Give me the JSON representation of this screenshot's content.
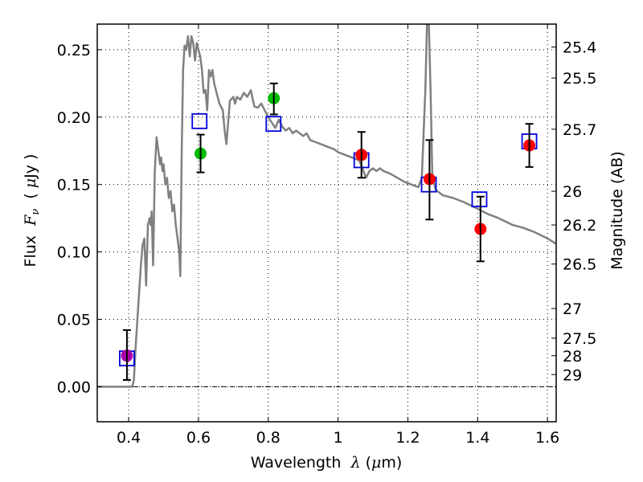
{
  "chart_data": {
    "type": "scatter",
    "title": "",
    "xlabel": "Wavelength  λ (μm)",
    "xlabel_parts": {
      "prefix": "Wavelength  ",
      "symbol": "λ",
      "suffix": " (",
      "mu": "μ",
      "unit": "m)"
    },
    "ylabel": "Flux  F_ν  ( μJy )",
    "ylabel_parts": {
      "prefix": "Flux  ",
      "symbol": "F",
      "sub": "ν",
      "open": "  ( ",
      "mu": "μ",
      "unit": "Jy )"
    },
    "y2label": "Magnitude (AB)",
    "xlim": [
      0.31,
      1.625
    ],
    "ylim": [
      -0.026,
      0.269
    ],
    "grid": true,
    "legend": "none",
    "xticks": [
      {
        "value": 0.4,
        "label": "0.4"
      },
      {
        "value": 0.6,
        "label": "0.6"
      },
      {
        "value": 0.8,
        "label": "0.8"
      },
      {
        "value": 1.0,
        "label": "1"
      },
      {
        "value": 1.2,
        "label": "1.2"
      },
      {
        "value": 1.4,
        "label": "1.4"
      },
      {
        "value": 1.6,
        "label": "1.6"
      }
    ],
    "yticks": [
      {
        "value": 0.0,
        "label": "0.00"
      },
      {
        "value": 0.05,
        "label": "0.05"
      },
      {
        "value": 0.1,
        "label": "0.10"
      },
      {
        "value": 0.15,
        "label": "0.15"
      },
      {
        "value": 0.2,
        "label": "0.20"
      },
      {
        "value": 0.25,
        "label": "0.25"
      }
    ],
    "y2ticks": [
      {
        "label": "25.4",
        "flux": 0.252
      },
      {
        "label": "25.5",
        "flux": 0.229
      },
      {
        "label": "25.7",
        "flux": 0.191
      },
      {
        "label": "26",
        "flux": 0.145
      },
      {
        "label": "26.2",
        "flux": 0.12
      },
      {
        "label": "26.5",
        "flux": 0.091
      },
      {
        "label": "27",
        "flux": 0.058
      },
      {
        "label": "27.5",
        "flux": 0.036
      },
      {
        "label": "28",
        "flux": 0.023
      },
      {
        "label": "29",
        "flux": 0.009
      }
    ],
    "zero_line": 0.0,
    "colors": {
      "spectrum": "#808080",
      "model_box": "#0000dd",
      "green": "#00bb00",
      "red": "#ff0000",
      "magenta": "#aa00aa",
      "errorbar": "#000000",
      "grid": "#000000"
    },
    "series": [
      {
        "name": "model spectrum",
        "kind": "line",
        "x": [
          0.31,
          0.41,
          0.415,
          0.42,
          0.43,
          0.435,
          0.44,
          0.445,
          0.45,
          0.455,
          0.46,
          0.463,
          0.466,
          0.47,
          0.475,
          0.48,
          0.485,
          0.49,
          0.493,
          0.497,
          0.5,
          0.505,
          0.51,
          0.515,
          0.52,
          0.525,
          0.53,
          0.535,
          0.54,
          0.545,
          0.548,
          0.552,
          0.556,
          0.56,
          0.565,
          0.57,
          0.575,
          0.58,
          0.585,
          0.59,
          0.595,
          0.6,
          0.605,
          0.61,
          0.615,
          0.62,
          0.625,
          0.63,
          0.635,
          0.64,
          0.645,
          0.65,
          0.66,
          0.67,
          0.675,
          0.68,
          0.69,
          0.7,
          0.705,
          0.71,
          0.72,
          0.73,
          0.74,
          0.75,
          0.76,
          0.77,
          0.78,
          0.79,
          0.8,
          0.81,
          0.82,
          0.83,
          0.84,
          0.85,
          0.86,
          0.87,
          0.88,
          0.89,
          0.9,
          0.91,
          0.92,
          0.93,
          0.95,
          0.97,
          0.99,
          1.0,
          1.02,
          1.04,
          1.06,
          1.07,
          1.08,
          1.09,
          1.1,
          1.11,
          1.12,
          1.13,
          1.15,
          1.17,
          1.19,
          1.21,
          1.23,
          1.24,
          1.25,
          1.255,
          1.26,
          1.265,
          1.27,
          1.28,
          1.3,
          1.33,
          1.36,
          1.4,
          1.43,
          1.46,
          1.5,
          1.53,
          1.56,
          1.6,
          1.625
        ],
        "y": [
          0.0,
          0.0,
          0.005,
          0.03,
          0.07,
          0.09,
          0.105,
          0.11,
          0.075,
          0.12,
          0.125,
          0.12,
          0.13,
          0.09,
          0.16,
          0.185,
          0.175,
          0.165,
          0.17,
          0.16,
          0.165,
          0.15,
          0.155,
          0.14,
          0.145,
          0.13,
          0.135,
          0.12,
          0.11,
          0.1,
          0.082,
          0.175,
          0.235,
          0.253,
          0.25,
          0.26,
          0.245,
          0.26,
          0.255,
          0.242,
          0.255,
          0.25,
          0.245,
          0.235,
          0.218,
          0.22,
          0.205,
          0.235,
          0.23,
          0.235,
          0.225,
          0.22,
          0.21,
          0.205,
          0.19,
          0.18,
          0.212,
          0.215,
          0.21,
          0.215,
          0.213,
          0.218,
          0.215,
          0.22,
          0.208,
          0.207,
          0.21,
          0.205,
          0.2,
          0.196,
          0.192,
          0.198,
          0.193,
          0.19,
          0.192,
          0.188,
          0.19,
          0.188,
          0.186,
          0.188,
          0.183,
          0.182,
          0.18,
          0.178,
          0.176,
          0.174,
          0.172,
          0.17,
          0.168,
          0.162,
          0.155,
          0.16,
          0.162,
          0.16,
          0.162,
          0.16,
          0.158,
          0.155,
          0.152,
          0.15,
          0.148,
          0.155,
          0.22,
          0.27,
          0.27,
          0.22,
          0.155,
          0.146,
          0.142,
          0.14,
          0.137,
          0.132,
          0.128,
          0.125,
          0.12,
          0.118,
          0.115,
          0.11,
          0.106
        ]
      },
      {
        "name": "model photometry",
        "kind": "open-square",
        "color": "#0000dd",
        "x": [
          0.395,
          0.603,
          0.815,
          1.067,
          1.26,
          1.405,
          1.548
        ],
        "y": [
          0.021,
          0.197,
          0.195,
          0.168,
          0.15,
          0.139,
          0.182
        ]
      },
      {
        "name": "observed (green)",
        "kind": "filled-circle",
        "color": "#00bb00",
        "x": [
          0.606,
          0.816
        ],
        "y": [
          0.173,
          0.214
        ],
        "yerr_low": [
          0.159,
          0.202
        ],
        "yerr_high": [
          0.187,
          0.225
        ]
      },
      {
        "name": "observed (red)",
        "kind": "filled-circle",
        "color": "#ff0000",
        "x": [
          1.067,
          1.262,
          1.408,
          1.548
        ],
        "y": [
          0.172,
          0.154,
          0.117,
          0.179
        ],
        "yerr_low": [
          0.155,
          0.124,
          0.093,
          0.163
        ],
        "yerr_high": [
          0.189,
          0.183,
          0.141,
          0.195
        ]
      },
      {
        "name": "observed (magenta)",
        "kind": "filled-circle",
        "color": "#aa00aa",
        "x": [
          0.395
        ],
        "y": [
          0.023
        ],
        "yerr_low": [
          0.005
        ],
        "yerr_high": [
          0.042
        ]
      }
    ]
  }
}
